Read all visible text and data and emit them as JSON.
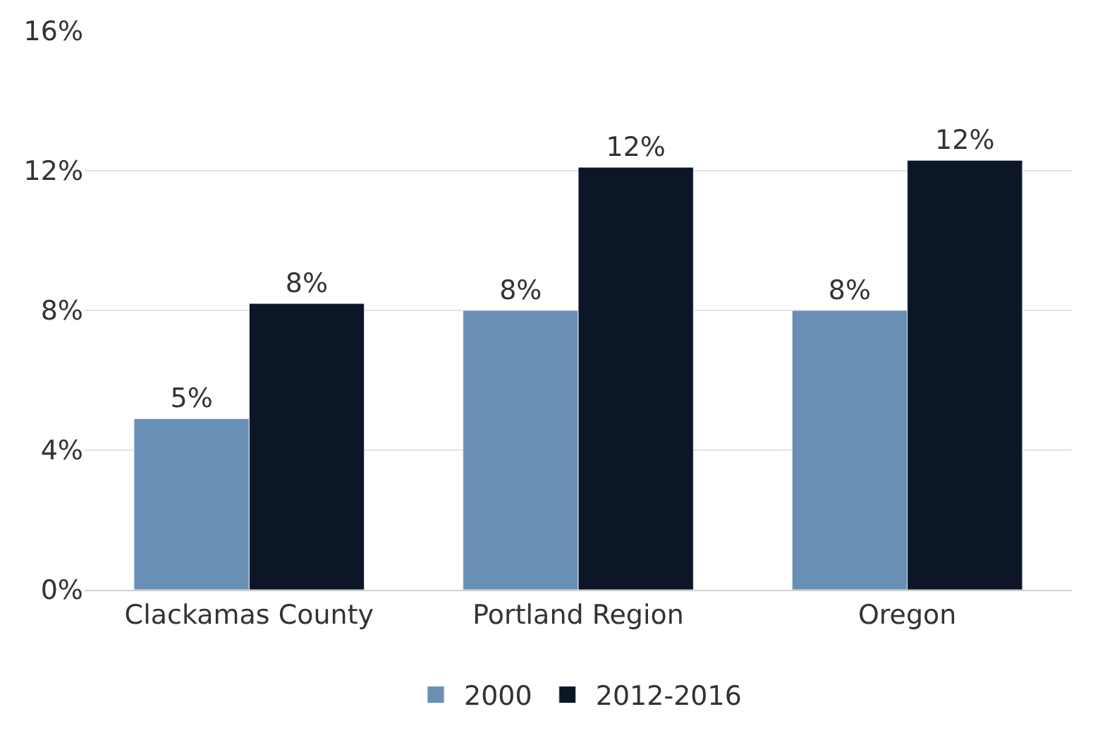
{
  "chart_data": {
    "type": "bar",
    "categories": [
      "Clackamas County",
      "Portland Region",
      "Oregon"
    ],
    "series": [
      {
        "name": "2000",
        "color": "#6a8fb5",
        "values": [
          4.9,
          8.0,
          8.0
        ],
        "value_labels": [
          "5%",
          "8%",
          "8%"
        ]
      },
      {
        "name": "2012-2016",
        "color": "#0d1626",
        "values": [
          8.2,
          12.1,
          12.3
        ],
        "value_labels": [
          "8%",
          "12%",
          "12%"
        ]
      }
    ],
    "ylim": [
      0,
      16
    ],
    "yticks": [
      {
        "value": 0,
        "label": "0%"
      },
      {
        "value": 4,
        "label": "4%"
      },
      {
        "value": 8,
        "label": "8%"
      },
      {
        "value": 12,
        "label": "12%"
      },
      {
        "value": 16,
        "label": "16%"
      }
    ],
    "grid": "y",
    "legend": "bottom"
  }
}
